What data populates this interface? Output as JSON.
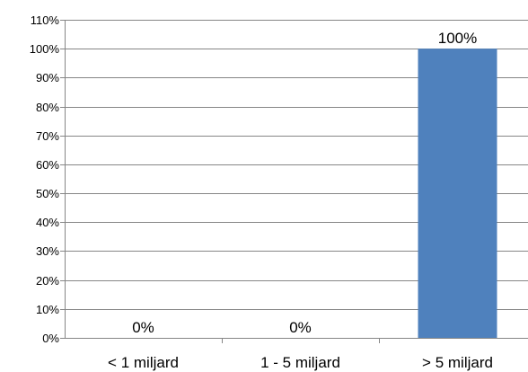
{
  "chart_data": {
    "type": "bar",
    "categories": [
      "< 1 miljard",
      "1 - 5 miljard",
      "> 5  miljard"
    ],
    "values": [
      0,
      0,
      100
    ],
    "data_labels": [
      "0%",
      "0%",
      "100%"
    ],
    "ylim": [
      0,
      110
    ],
    "yticks": [
      "0%",
      "10%",
      "20%",
      "30%",
      "40%",
      "50%",
      "60%",
      "70%",
      "80%",
      "90%",
      "100%",
      "110%"
    ],
    "grid": true,
    "bar_color": "#4f81bd",
    "title": "",
    "xlabel": "",
    "ylabel": ""
  }
}
